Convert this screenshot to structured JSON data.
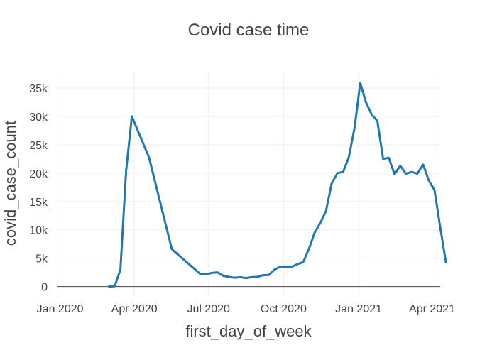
{
  "chart_data": {
    "type": "line",
    "title": "Covid case time",
    "xlabel": "first_day_of_week",
    "ylabel": "covid_case_count",
    "x_ticks": [
      {
        "date": "2020-01-01",
        "label": "Jan 2020"
      },
      {
        "date": "2020-04-01",
        "label": "Apr 2020"
      },
      {
        "date": "2020-07-01",
        "label": "Jul 2020"
      },
      {
        "date": "2020-10-01",
        "label": "Oct 2020"
      },
      {
        "date": "2021-01-01",
        "label": "Jan 2021"
      },
      {
        "date": "2021-04-01",
        "label": "Apr 2021"
      }
    ],
    "y_ticks": [
      {
        "value": 0,
        "label": "0"
      },
      {
        "value": 5000,
        "label": "5k"
      },
      {
        "value": 10000,
        "label": "10k"
      },
      {
        "value": 15000,
        "label": "15k"
      },
      {
        "value": 20000,
        "label": "20k"
      },
      {
        "value": 25000,
        "label": "25k"
      },
      {
        "value": 30000,
        "label": "30k"
      },
      {
        "value": 35000,
        "label": "35k"
      }
    ],
    "xlim": [
      "2019-12-28",
      "2021-04-11"
    ],
    "ylim": [
      -1800,
      38000
    ],
    "grid": true,
    "line_color": "#1f77b4",
    "series": [
      {
        "x": [
          "2020-03-01",
          "2020-03-08",
          "2020-03-15",
          "2020-03-22",
          "2020-03-29",
          "2020-04-19",
          "2020-05-17",
          "2020-06-21",
          "2020-06-28",
          "2020-07-05",
          "2020-07-12",
          "2020-07-19",
          "2020-07-26",
          "2020-08-02",
          "2020-08-09",
          "2020-08-16",
          "2020-08-23",
          "2020-08-30",
          "2020-09-06",
          "2020-09-13",
          "2020-09-20",
          "2020-09-27",
          "2020-10-04",
          "2020-10-11",
          "2020-10-18",
          "2020-10-25",
          "2020-11-01",
          "2020-11-08",
          "2020-11-15",
          "2020-11-22",
          "2020-11-29",
          "2020-12-06",
          "2020-12-13",
          "2020-12-20",
          "2020-12-27",
          "2021-01-03",
          "2021-01-10",
          "2021-01-17",
          "2021-01-24",
          "2021-01-31",
          "2021-02-07",
          "2021-02-14",
          "2021-02-21",
          "2021-02-28",
          "2021-03-07",
          "2021-03-14",
          "2021-03-21",
          "2021-03-28",
          "2021-04-04",
          "2021-04-11",
          "2021-04-18"
        ],
        "y": [
          0,
          50,
          3000,
          20500,
          30000,
          22800,
          6600,
          2200,
          2150,
          2400,
          2500,
          1900,
          1700,
          1550,
          1650,
          1500,
          1650,
          1700,
          2000,
          2050,
          3000,
          3500,
          3450,
          3500,
          3950,
          4300,
          6600,
          9500,
          11200,
          13300,
          18200,
          20000,
          20200,
          22800,
          28000,
          35900,
          32500,
          30300,
          29200,
          22500,
          22700,
          19800,
          21300,
          19900,
          20200,
          19900,
          21500,
          18700,
          17000,
          10500,
          4300
        ]
      }
    ]
  }
}
